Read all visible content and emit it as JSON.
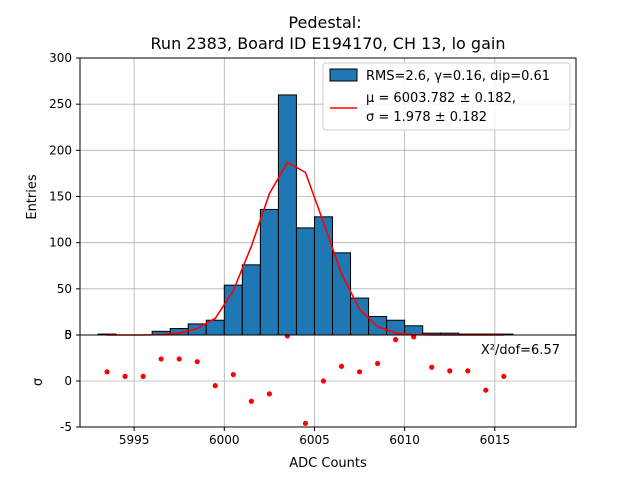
{
  "chart_data": [
    {
      "type": "bar",
      "title": "Pedestal:",
      "subtitle": "Run 2383, Board ID E194170, CH 13, lo gain",
      "ylabel": "Entries",
      "xlim": [
        5992,
        6019.5
      ],
      "ylim": [
        0,
        300
      ],
      "yticks": [
        0,
        50,
        100,
        150,
        200,
        250,
        300
      ],
      "grid": true,
      "legend_placement": "top-right",
      "hist_color": "#1f77b4",
      "fit_color": "#ff0000",
      "hist_label": "RMS=2.6, γ=0.16, dip=0.61",
      "fit_label_line1": "μ = 6003.782 ± 0.182,",
      "fit_label_line2": "σ = 1.978 ± 0.182",
      "bins": [
        {
          "x": 5993,
          "value": 1
        },
        {
          "x": 5994,
          "value": 0
        },
        {
          "x": 5995,
          "value": 0
        },
        {
          "x": 5996,
          "value": 4
        },
        {
          "x": 5997,
          "value": 7
        },
        {
          "x": 5998,
          "value": 12
        },
        {
          "x": 5999,
          "value": 16
        },
        {
          "x": 6000,
          "value": 54
        },
        {
          "x": 6001,
          "value": 76
        },
        {
          "x": 6002,
          "value": 136
        },
        {
          "x": 6003,
          "value": 260
        },
        {
          "x": 6004,
          "value": 116
        },
        {
          "x": 6005,
          "value": 128
        },
        {
          "x": 6006,
          "value": 89
        },
        {
          "x": 6007,
          "value": 40
        },
        {
          "x": 6008,
          "value": 20
        },
        {
          "x": 6009,
          "value": 16
        },
        {
          "x": 6010,
          "value": 10
        },
        {
          "x": 6011,
          "value": 2
        },
        {
          "x": 6012,
          "value": 2
        },
        {
          "x": 6013,
          "value": 1
        },
        {
          "x": 6014,
          "value": 1
        },
        {
          "x": 6015,
          "value": 1
        }
      ],
      "fit_x": [
        5993.5,
        5994.5,
        5995.5,
        5996.5,
        5997.5,
        5998.5,
        5999.5,
        6000.5,
        6001.5,
        6002.5,
        6003.5,
        6004.5,
        6005.5,
        6006.5,
        6007.5,
        6008.5,
        6009.5,
        6010.5,
        6011.5,
        6012.5,
        6013.5,
        6014.5,
        6015.5
      ],
      "fit_y": [
        0,
        0,
        0,
        0.5,
        2,
        7,
        18,
        48,
        96,
        153,
        187,
        176,
        122,
        66,
        28,
        9,
        2,
        0.5,
        0,
        0,
        0,
        0,
        0
      ]
    },
    {
      "type": "scatter",
      "xlabel": "ADC Counts",
      "ylabel": "σ",
      "xlim": [
        5992,
        6019.5
      ],
      "ylim": [
        -5,
        5
      ],
      "xticks": [
        5995,
        6000,
        6005,
        6010,
        6015
      ],
      "yticks": [
        -5,
        0,
        5
      ],
      "grid": true,
      "point_color": "#ff0000",
      "annotation": "X²/dof=6.57",
      "points": [
        {
          "x": 5993.5,
          "y": 1.0
        },
        {
          "x": 5994.5,
          "y": 0.5
        },
        {
          "x": 5995.5,
          "y": 0.5
        },
        {
          "x": 5996.5,
          "y": 2.4
        },
        {
          "x": 5997.5,
          "y": 2.4
        },
        {
          "x": 5998.5,
          "y": 2.1
        },
        {
          "x": 5999.5,
          "y": -0.5
        },
        {
          "x": 6000.5,
          "y": 0.7
        },
        {
          "x": 6001.5,
          "y": -2.2
        },
        {
          "x": 6002.5,
          "y": -1.4
        },
        {
          "x": 6003.5,
          "y": 4.9
        },
        {
          "x": 6004.5,
          "y": -4.6
        },
        {
          "x": 6005.5,
          "y": 0.0
        },
        {
          "x": 6006.5,
          "y": 1.6
        },
        {
          "x": 6007.5,
          "y": 1.0
        },
        {
          "x": 6008.5,
          "y": 1.9
        },
        {
          "x": 6009.5,
          "y": 4.5
        },
        {
          "x": 6010.5,
          "y": 4.8
        },
        {
          "x": 6011.5,
          "y": 1.5
        },
        {
          "x": 6012.5,
          "y": 1.1
        },
        {
          "x": 6013.5,
          "y": 1.1
        },
        {
          "x": 6014.5,
          "y": -1.0
        },
        {
          "x": 6015.5,
          "y": 0.5
        }
      ]
    }
  ]
}
